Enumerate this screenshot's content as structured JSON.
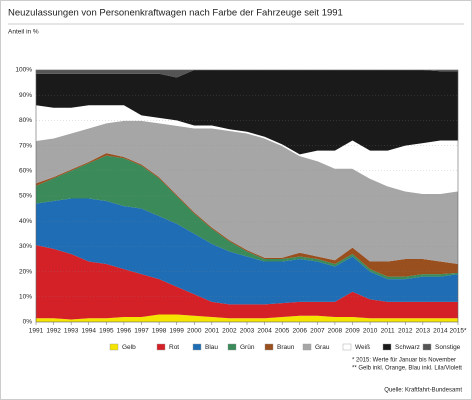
{
  "chart_data": {
    "type": "stacked-area",
    "title": "Neuzulassungen von Personenkraftwagen nach Farbe der Fahrzeuge seit 1991",
    "subtitle": "Anteil in %",
    "categories": [
      "1991",
      "1992",
      "1993",
      "1994",
      "1995",
      "1996",
      "1997",
      "1998",
      "1999",
      "2000",
      "2001",
      "2002",
      "2003",
      "2004",
      "2005",
      "2006",
      "2007",
      "2008",
      "2009",
      "2010",
      "2011",
      "2012",
      "2013",
      "2014",
      "2015*"
    ],
    "series": [
      {
        "name": "Gelb",
        "color": "#f5e400",
        "values": [
          1.5,
          1.5,
          1,
          1.5,
          1.5,
          2,
          2,
          3,
          3,
          2.5,
          2,
          1.5,
          1.5,
          1.5,
          2,
          2.5,
          2.5,
          2,
          2,
          1.5,
          1.5,
          1.5,
          1.5,
          1.5,
          1.5
        ]
      },
      {
        "name": "Rot",
        "color": "#d42027",
        "values": [
          29,
          27.5,
          26,
          22.5,
          21.5,
          19,
          17,
          14,
          11,
          8.5,
          6,
          5.5,
          5.5,
          5.5,
          5.5,
          5.5,
          5.5,
          6,
          10,
          7.5,
          6.5,
          6.5,
          6.5,
          6.5,
          6.5
        ]
      },
      {
        "name": "Blau",
        "color": "#1f6db4",
        "values": [
          16.5,
          19,
          22,
          25,
          25,
          25,
          26,
          25,
          25,
          24,
          23,
          21,
          19,
          17,
          16.5,
          17,
          16,
          14,
          14,
          11,
          9,
          9,
          10,
          10,
          11
        ]
      },
      {
        "name": "Grün",
        "color": "#3a8a5a",
        "values": [
          7,
          9,
          11,
          14,
          18,
          19,
          17,
          15,
          11,
          8,
          6,
          4,
          2,
          1,
          1,
          1,
          1,
          1,
          1,
          1,
          1,
          1,
          1,
          1,
          0.5
        ]
      },
      {
        "name": "Braun",
        "color": "#9a4f1f",
        "values": [
          1,
          0.5,
          0.5,
          0.5,
          1,
          0.5,
          0.5,
          0.5,
          0.5,
          0.5,
          0.5,
          0.5,
          0.5,
          0.5,
          0.5,
          1.5,
          1,
          1.5,
          2.5,
          3,
          6,
          7,
          6,
          5,
          3.5
        ]
      },
      {
        "name": "Grau",
        "color": "#a6a6a6",
        "values": [
          17,
          15.5,
          14.5,
          13.5,
          12,
          14.5,
          17.5,
          21.5,
          27.5,
          33.5,
          39.5,
          43.5,
          46.5,
          47.5,
          44.5,
          38.5,
          38,
          36.5,
          31.5,
          33,
          30,
          27,
          26,
          27,
          29
        ]
      },
      {
        "name": "Weiß",
        "color": "#ffffff",
        "values": [
          14,
          12,
          10,
          9,
          7,
          6,
          2,
          2,
          2,
          1,
          1,
          0.5,
          0.5,
          0.5,
          0.5,
          0.5,
          4,
          7,
          11,
          11,
          14,
          18,
          20,
          21,
          20
        ]
      },
      {
        "name": "Schwarz",
        "color": "#1a1a1a",
        "values": [
          12.5,
          13.5,
          13.5,
          12.5,
          12.5,
          12.5,
          16.5,
          17.5,
          17,
          22,
          22,
          23.5,
          24.5,
          26.5,
          29.5,
          33.5,
          32,
          32,
          28,
          32,
          32,
          30,
          29,
          27.5,
          27.5
        ]
      },
      {
        "name": "Sonstige",
        "color": "#555555",
        "values": [
          1.5,
          1.5,
          1.5,
          1.5,
          1.5,
          1.5,
          1.5,
          1.5,
          3,
          0,
          0,
          0,
          0,
          0,
          0,
          0,
          0,
          0,
          0,
          0,
          0,
          0,
          0,
          0.5,
          0.5
        ]
      }
    ],
    "ylim": [
      0,
      100
    ],
    "yticks": [
      {
        "value": 0,
        "label": "0%"
      },
      {
        "value": 10,
        "label": "10%"
      },
      {
        "value": 20,
        "label": "20%"
      },
      {
        "value": 30,
        "label": "30%"
      },
      {
        "value": 40,
        "label": "40%"
      },
      {
        "value": 50,
        "label": "50%"
      },
      {
        "value": 60,
        "label": "60%"
      },
      {
        "value": 70,
        "label": "70%"
      },
      {
        "value": 80,
        "label": "80%"
      },
      {
        "value": 90,
        "label": "90%"
      },
      {
        "value": 100,
        "label": "100%"
      }
    ],
    "grid": true,
    "notes": [
      "* 2015: Werte für Januar bis November",
      "** Gelb inkl. Orange, Blau inkl. Lila/Violett"
    ],
    "source": "Quelle: Kraftfahrt-Bundesamt"
  }
}
